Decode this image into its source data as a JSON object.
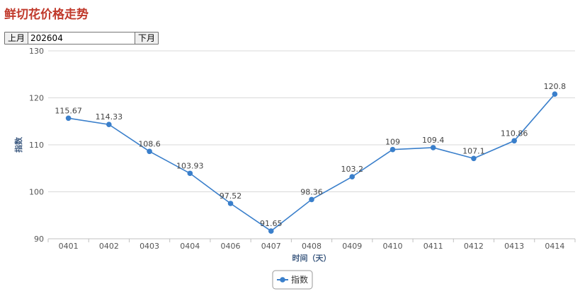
{
  "page": {
    "title": "鲜切花价格走势"
  },
  "controls": {
    "prev_label": "上月",
    "month_value": "202604",
    "next_label": "下月"
  },
  "colors": {
    "title": "#c0392b",
    "series": "#3a7fcb",
    "grid": "#d9d9d9",
    "axis_text": "#555555",
    "axis_title": "#3d5a80"
  },
  "legend": {
    "icon": "line-marker-icon"
  },
  "chart_data": {
    "type": "line",
    "title": "",
    "xlabel": "时间（天）",
    "ylabel": "指数",
    "ylim": [
      90,
      130
    ],
    "yticks": [
      90,
      100,
      110,
      120,
      130
    ],
    "grid": true,
    "legend_position": "bottom-center",
    "categories": [
      "0401",
      "0402",
      "0403",
      "0404",
      "0406",
      "0407",
      "0408",
      "0409",
      "0410",
      "0411",
      "0412",
      "0413",
      "0414"
    ],
    "series": [
      {
        "name": "指数",
        "values": [
          115.67,
          114.33,
          108.6,
          103.93,
          97.52,
          91.65,
          98.36,
          103.2,
          109,
          109.4,
          107.1,
          110.86,
          120.8
        ],
        "labels": [
          "115.67",
          "114.33",
          "108.6",
          "103.93",
          "97.52",
          "91.65",
          "98.36",
          "103.2",
          "109",
          "109.4",
          "107.1",
          "110.86",
          "120.8"
        ]
      }
    ]
  }
}
